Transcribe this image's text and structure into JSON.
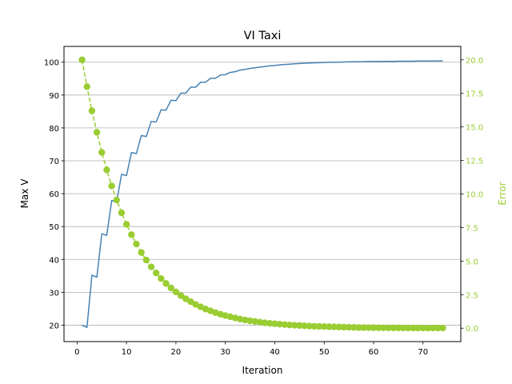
{
  "chart_data": {
    "type": "line",
    "title": "VI Taxi",
    "xlabel": "Iteration",
    "ylabel_left": "Max V",
    "ylabel_right": "Error",
    "xlim": [
      -2.65,
      77.65
    ],
    "ylim_left": [
      15.0,
      104.8
    ],
    "ylim_right": [
      -1.0,
      21.0
    ],
    "x_ticks": [
      "0",
      "10",
      "20",
      "30",
      "40",
      "50",
      "60",
      "70"
    ],
    "y_left_ticks": [
      "20",
      "30",
      "40",
      "50",
      "60",
      "70",
      "80",
      "90",
      "100"
    ],
    "y_right_ticks": [
      "0.0",
      "2.5",
      "5.0",
      "7.5",
      "10.0",
      "12.5",
      "15.0",
      "17.5",
      "20.0"
    ],
    "grid": "horizontal (left axis)",
    "colors": {
      "max_v": "#4682b4",
      "error": "#9acd32",
      "grid": "#b0b0b0"
    },
    "series": [
      {
        "axis": "left",
        "style": "solid",
        "x": [
          1,
          2,
          3,
          4,
          5,
          6,
          7,
          8,
          9,
          10,
          11,
          12,
          13,
          14,
          15,
          16,
          17,
          18,
          19,
          20,
          21,
          22,
          23,
          24,
          25,
          26,
          27,
          28,
          29,
          30,
          31,
          32,
          33,
          34,
          35,
          36,
          37,
          38,
          39,
          40,
          41,
          42,
          43,
          44,
          45,
          46,
          47,
          48,
          49,
          50,
          51,
          52,
          53,
          54,
          55,
          56,
          57,
          58,
          59,
          60,
          61,
          62,
          63,
          64,
          65,
          66,
          67,
          68,
          69,
          70,
          71,
          72,
          73,
          74
        ],
        "values": [
          20.0,
          19.3,
          35.2,
          34.6,
          47.8,
          47.3,
          57.9,
          57.5,
          65.9,
          65.5,
          72.5,
          72.2,
          77.7,
          77.4,
          82.0,
          81.8,
          85.5,
          85.4,
          88.4,
          88.3,
          90.6,
          90.6,
          92.4,
          92.4,
          93.9,
          93.9,
          95.1,
          95.1,
          96.1,
          96.2,
          96.9,
          97.1,
          97.6,
          97.8,
          98.1,
          98.3,
          98.5,
          98.7,
          98.9,
          99.0,
          99.2,
          99.3,
          99.4,
          99.5,
          99.6,
          99.7,
          99.75,
          99.8,
          99.85,
          99.9,
          99.95,
          100.0,
          100.0,
          100.05,
          100.1,
          100.1,
          100.15,
          100.15,
          100.2,
          100.2,
          100.2,
          100.25,
          100.25,
          100.25,
          100.3,
          100.3,
          100.3,
          100.3,
          100.35,
          100.35,
          100.35,
          100.35,
          100.4,
          100.4
        ]
      },
      {
        "axis": "right",
        "style": "dashed with circle markers",
        "x": [
          1,
          2,
          3,
          4,
          5,
          6,
          7,
          8,
          9,
          10,
          11,
          12,
          13,
          14,
          15,
          16,
          17,
          18,
          19,
          20,
          21,
          22,
          23,
          24,
          25,
          26,
          27,
          28,
          29,
          30,
          31,
          32,
          33,
          34,
          35,
          36,
          37,
          38,
          39,
          40,
          41,
          42,
          43,
          44,
          45,
          46,
          47,
          48,
          49,
          50,
          51,
          52,
          53,
          54,
          55,
          56,
          57,
          58,
          59,
          60,
          61,
          62,
          63,
          64,
          65,
          66,
          67,
          68,
          69,
          70,
          71,
          72,
          73,
          74
        ],
        "values": [
          20.0,
          18.0,
          16.2,
          14.6,
          13.1,
          11.8,
          10.6,
          9.55,
          8.6,
          7.74,
          6.97,
          6.27,
          5.64,
          5.08,
          4.57,
          4.11,
          3.7,
          3.33,
          3.0,
          2.7,
          2.43,
          2.19,
          1.97,
          1.77,
          1.59,
          1.43,
          1.29,
          1.16,
          1.04,
          0.94,
          0.85,
          0.76,
          0.68,
          0.61,
          0.55,
          0.5,
          0.45,
          0.4,
          0.36,
          0.33,
          0.3,
          0.27,
          0.24,
          0.22,
          0.2,
          0.18,
          0.16,
          0.14,
          0.13,
          0.12,
          0.11,
          0.1,
          0.09,
          0.08,
          0.07,
          0.06,
          0.05,
          0.045,
          0.04,
          0.036,
          0.032,
          0.029,
          0.026,
          0.023,
          0.021,
          0.019,
          0.017,
          0.015,
          0.013,
          0.012,
          0.011,
          0.01,
          0.009,
          0.008
        ]
      }
    ]
  }
}
